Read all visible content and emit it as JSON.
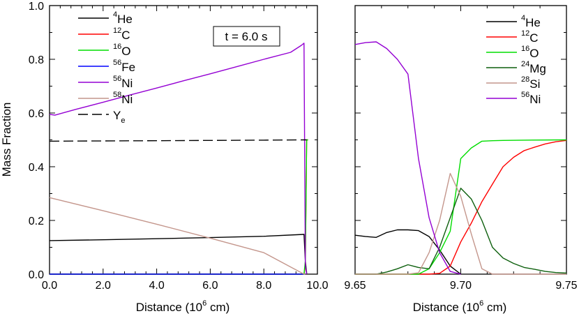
{
  "chart_data": [
    {
      "type": "line",
      "panel": "left",
      "xlabel": {
        "prefix": "Distance (10",
        "sup": "6",
        "suffix": " cm)"
      },
      "ylabel": "Mass Fraction",
      "xlim": [
        0,
        10
      ],
      "ylim": [
        0,
        1
      ],
      "xticks": [
        0,
        2,
        4,
        6,
        8,
        10
      ],
      "xtick_labels": [
        "0.0",
        "2.0",
        "4.0",
        "6.0",
        "8.0",
        "10.0"
      ],
      "yticks": [
        0,
        0.2,
        0.4,
        0.6,
        0.8,
        1.0
      ],
      "ytick_labels": [
        "0.0",
        "0.2",
        "0.4",
        "0.6",
        "0.8",
        "1.0"
      ],
      "annotation": "t = 6.0 s",
      "legend_position": "top-left",
      "series": [
        {
          "mass": "4",
          "element": "He",
          "color": "#000000",
          "dash": "",
          "x": [
            0,
            2,
            4,
            6,
            8,
            9.5,
            9.55,
            9.6
          ],
          "y": [
            0.125,
            0.128,
            0.132,
            0.136,
            0.141,
            0.148,
            0.05,
            0.0
          ]
        },
        {
          "mass": "12",
          "element": "C",
          "color": "#ff0000",
          "dash": "",
          "x": [
            0,
            9.5,
            9.55,
            9.6,
            9.62,
            9.65
          ],
          "y": [
            0,
            0,
            0.03,
            0.5,
            0.5,
            0.5
          ]
        },
        {
          "mass": "16",
          "element": "O",
          "color": "#00dd00",
          "dash": "",
          "x": [
            0,
            9.5,
            9.55,
            9.6,
            9.65
          ],
          "y": [
            0,
            0,
            0.05,
            0.5,
            0.5
          ]
        },
        {
          "mass": "56",
          "element": "Fe",
          "color": "#0000ff",
          "dash": "",
          "x": [
            0,
            9.5,
            9.55
          ],
          "y": [
            0,
            0,
            0
          ]
        },
        {
          "mass": "56",
          "element": "Ni",
          "color": "#9400d3",
          "dash": "",
          "x": [
            0,
            0.2,
            1,
            2,
            3,
            4,
            5,
            6,
            7,
            8,
            9,
            9.4,
            9.5,
            9.55,
            9.6
          ],
          "y": [
            0.595,
            0.592,
            0.614,
            0.64,
            0.667,
            0.693,
            0.72,
            0.746,
            0.773,
            0.8,
            0.826,
            0.852,
            0.86,
            0.03,
            0.0
          ]
        },
        {
          "mass": "58",
          "element": "Ni",
          "color": "#c4968c",
          "dash": "",
          "x": [
            0,
            2,
            4,
            6,
            8,
            9.5,
            9.55
          ],
          "y": [
            0.285,
            0.236,
            0.186,
            0.134,
            0.08,
            0.0,
            0.0
          ]
        },
        {
          "element": "Y",
          "sub": "e",
          "color": "#000000",
          "dash": "14,6",
          "x": [
            0,
            2,
            4,
            6,
            8,
            9.5,
            9.6
          ],
          "y": [
            0.495,
            0.496,
            0.497,
            0.498,
            0.499,
            0.5,
            0.5
          ]
        }
      ]
    },
    {
      "type": "line",
      "panel": "right",
      "xlabel": {
        "prefix": "Distance (10",
        "sup": "6",
        "suffix": " cm)"
      },
      "xlim": [
        9.65,
        9.75
      ],
      "ylim": [
        0,
        1
      ],
      "xticks": [
        9.65,
        9.7,
        9.75
      ],
      "xtick_labels": [
        "9.65",
        "9.70",
        "9.75"
      ],
      "legend_position": "top-right",
      "series": [
        {
          "mass": "4",
          "element": "He",
          "color": "#000000",
          "dash": "",
          "x": [
            9.65,
            9.655,
            9.66,
            9.665,
            9.67,
            9.675,
            9.68,
            9.685,
            9.69,
            9.695,
            9.7
          ],
          "y": [
            0.145,
            0.14,
            0.137,
            0.155,
            0.165,
            0.165,
            0.162,
            0.14,
            0.09,
            0.03,
            0.0
          ]
        },
        {
          "mass": "12",
          "element": "C",
          "color": "#ff0000",
          "dash": "",
          "x": [
            9.65,
            9.685,
            9.69,
            9.695,
            9.7,
            9.705,
            9.71,
            9.715,
            9.72,
            9.725,
            9.73,
            9.735,
            9.74,
            9.745,
            9.75
          ],
          "y": [
            0,
            0,
            0.003,
            0.03,
            0.12,
            0.19,
            0.27,
            0.335,
            0.4,
            0.435,
            0.46,
            0.473,
            0.485,
            0.493,
            0.498
          ]
        },
        {
          "mass": "16",
          "element": "O",
          "color": "#00dd00",
          "dash": "",
          "x": [
            9.65,
            9.68,
            9.685,
            9.69,
            9.695,
            9.7,
            9.705,
            9.71,
            9.715,
            9.72,
            9.73,
            9.75
          ],
          "y": [
            0,
            0,
            0.02,
            0.08,
            0.16,
            0.43,
            0.47,
            0.495,
            0.497,
            0.498,
            0.499,
            0.5
          ]
        },
        {
          "mass": "24",
          "element": "Mg",
          "color": "#0d5f0d",
          "dash": "",
          "x": [
            9.65,
            9.66,
            9.665,
            9.67,
            9.675,
            9.68,
            9.685,
            9.69,
            9.695,
            9.7,
            9.705,
            9.71,
            9.715,
            9.72,
            9.725,
            9.73,
            9.735,
            9.74,
            9.745,
            9.75
          ],
          "y": [
            0,
            0,
            0.008,
            0.02,
            0.035,
            0.025,
            0.02,
            0.1,
            0.21,
            0.32,
            0.28,
            0.2,
            0.1,
            0.06,
            0.04,
            0.025,
            0.018,
            0.01,
            0.006,
            0.004
          ]
        },
        {
          "mass": "28",
          "element": "Si",
          "color": "#c4968c",
          "dash": "",
          "x": [
            9.65,
            9.675,
            9.68,
            9.685,
            9.69,
            9.695,
            9.7,
            9.705,
            9.71,
            9.715,
            9.75
          ],
          "y": [
            0,
            0,
            0.005,
            0.08,
            0.2,
            0.375,
            0.29,
            0.15,
            0.02,
            0.0,
            0.0
          ]
        },
        {
          "mass": "56",
          "element": "Ni",
          "color": "#9400d3",
          "dash": "",
          "x": [
            9.65,
            9.655,
            9.66,
            9.665,
            9.67,
            9.675,
            9.68,
            9.685,
            9.69,
            9.695,
            9.7
          ],
          "y": [
            0.855,
            0.862,
            0.865,
            0.84,
            0.8,
            0.745,
            0.43,
            0.21,
            0.08,
            0.01,
            0.0
          ]
        }
      ]
    }
  ]
}
